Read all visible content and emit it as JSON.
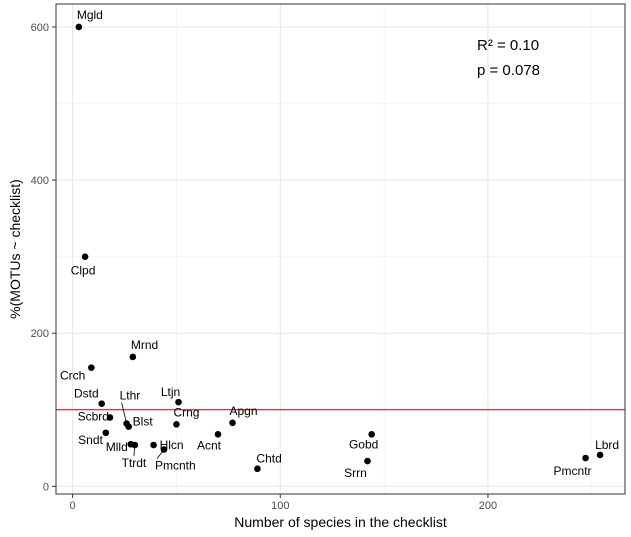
{
  "chart_data": {
    "type": "scatter",
    "title": "",
    "xlabel": "Number of species in the checklist",
    "ylabel": "%(MOTUs ~ checklist)",
    "xlim": [
      -8,
      266
    ],
    "ylim": [
      -10,
      630
    ],
    "x_ticks": [
      0,
      100,
      200
    ],
    "y_ticks": [
      0,
      200,
      400,
      600
    ],
    "grid": true,
    "reference_line": {
      "y": 100,
      "color": "#cc0000"
    },
    "annotation": {
      "line1": "R² = 0.10",
      "line2": "p = 0.078"
    },
    "points": [
      {
        "label": "Mgld",
        "x": 3,
        "y": 600
      },
      {
        "label": "Clpd",
        "x": 6,
        "y": 300
      },
      {
        "label": "Mrnd",
        "x": 29,
        "y": 169
      },
      {
        "label": "Crch",
        "x": 9,
        "y": 155
      },
      {
        "label": "Ltjn",
        "x": 51,
        "y": 110
      },
      {
        "label": "Dstd",
        "x": 14,
        "y": 108
      },
      {
        "label": "Lthr",
        "x": 26,
        "y": 82
      },
      {
        "label": "Scbrd",
        "x": 18,
        "y": 90
      },
      {
        "label": "Blst",
        "x": 27,
        "y": 78
      },
      {
        "label": "Crng",
        "x": 50,
        "y": 81
      },
      {
        "label": "Apgn",
        "x": 77,
        "y": 83
      },
      {
        "label": "Sndt",
        "x": 16,
        "y": 70
      },
      {
        "label": "Acnt",
        "x": 70,
        "y": 68
      },
      {
        "label": "Mlld",
        "x": 28,
        "y": 55
      },
      {
        "label": "Hlcn",
        "x": 39,
        "y": 54
      },
      {
        "label": "Ttrdt",
        "x": 30,
        "y": 54
      },
      {
        "label": "Pmcnth",
        "x": 44,
        "y": 48
      },
      {
        "label": "Chtd",
        "x": 89,
        "y": 23
      },
      {
        "label": "Gobd",
        "x": 144,
        "y": 68
      },
      {
        "label": "Srrn",
        "x": 142,
        "y": 33
      },
      {
        "label": "Lbrd",
        "x": 254,
        "y": 41
      },
      {
        "label": "Pmcntr",
        "x": 247,
        "y": 37
      }
    ]
  }
}
